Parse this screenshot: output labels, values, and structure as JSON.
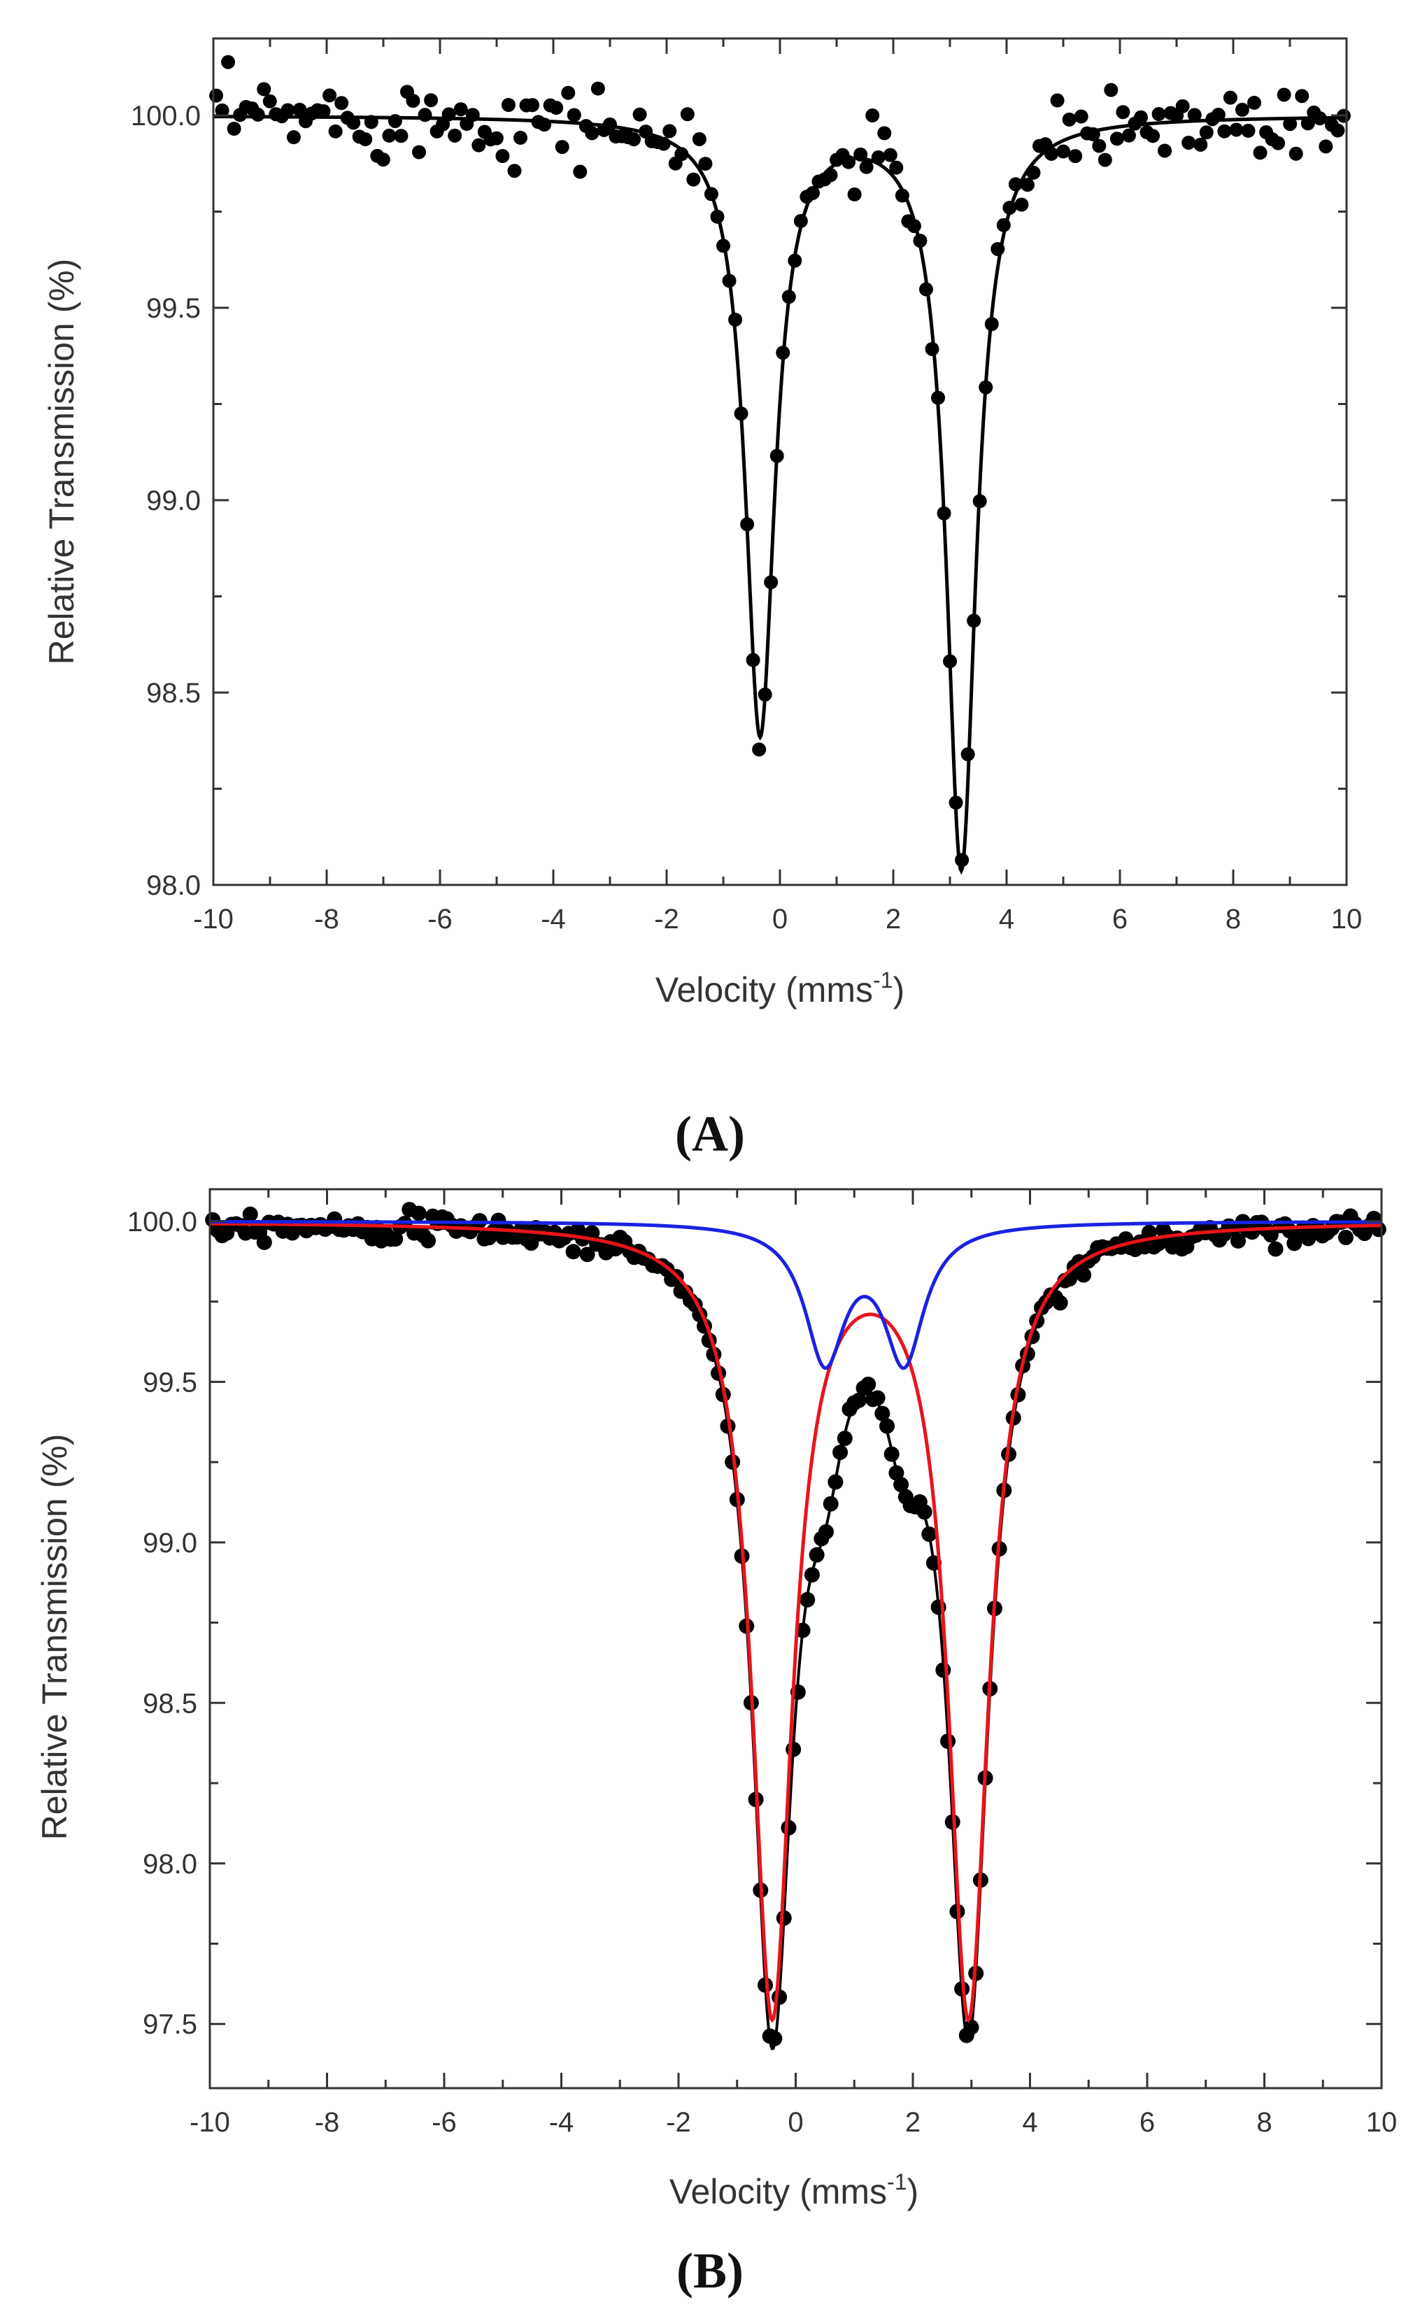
{
  "chart_data": [
    {
      "panel": "(A)",
      "type": "scatter",
      "xlabel": "Velocity (mms",
      "xlabel_sup": "-1",
      "xlabel_end": ")",
      "ylabel": "Relative Transmission (%)",
      "xlim": [
        -10,
        10
      ],
      "ylim": [
        98.0,
        100.2
      ],
      "xticks": [
        -10,
        -8,
        -6,
        -4,
        -2,
        0,
        2,
        4,
        6,
        8,
        10
      ],
      "yticks": [
        "98.0",
        "98.5",
        "99.0",
        "99.5",
        "100.0"
      ],
      "yticks_values": [
        98.0,
        98.5,
        99.0,
        99.5,
        100.0
      ],
      "colors": {
        "data": "#000000",
        "fit": "#000000"
      },
      "series": [
        {
          "name": "fit",
          "kind": "doublet",
          "color": "#000000",
          "baseline": 100.0,
          "peaks": [
            {
              "center": -0.35,
              "depth": 1.6,
              "hwhm": 0.32
            },
            {
              "center": 3.2,
              "depth": 1.95,
              "hwhm": 0.32
            }
          ]
        }
      ],
      "data_points": "~190 points following the fit curve with scatter of about ±0.05% near the baseline"
    },
    {
      "panel": "(B)",
      "type": "scatter",
      "xlabel": "Velocity (mms",
      "xlabel_sup": "-1",
      "xlabel_end": ")",
      "ylabel": "Relative Transmission (%)",
      "xlim": [
        -10,
        10
      ],
      "ylim": [
        97.3,
        100.1
      ],
      "xticks": [
        -10,
        -8,
        -6,
        -4,
        -2,
        0,
        2,
        4,
        6,
        8,
        10
      ],
      "yticks": [
        "97.5",
        "98.0",
        "98.5",
        "99.0",
        "99.5",
        "100.0"
      ],
      "yticks_values": [
        97.5,
        98.0,
        98.5,
        99.0,
        99.5,
        100.0
      ],
      "colors": {
        "data": "#000000",
        "total_fit": "#000000",
        "component_1": "#e8141b",
        "component_2": "#1a22e0"
      },
      "series": [
        {
          "name": "component-red",
          "kind": "doublet",
          "color": "#e8141b",
          "baseline": 100.0,
          "peaks": [
            {
              "center": -0.4,
              "depth": 2.45,
              "hwhm": 0.42
            },
            {
              "center": 2.95,
              "depth": 2.45,
              "hwhm": 0.42
            }
          ]
        },
        {
          "name": "component-blue",
          "kind": "doublet",
          "color": "#1a22e0",
          "baseline": 100.0,
          "peaks": [
            {
              "center": 0.5,
              "depth": 0.42,
              "hwhm": 0.42
            },
            {
              "center": 1.85,
              "depth": 0.42,
              "hwhm": 0.42
            }
          ]
        },
        {
          "name": "total-fit",
          "kind": "sum",
          "color": "#000000"
        }
      ],
      "data_points": "~250 points following the total fit curve with scatter of about ±0.02% near the baseline"
    }
  ]
}
